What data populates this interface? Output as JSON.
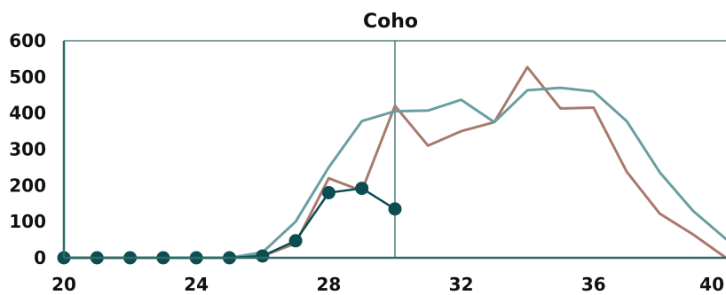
{
  "chart_data": {
    "type": "line",
    "title": "Coho",
    "xlabel": "",
    "ylabel": "",
    "xlim": [
      20,
      40
    ],
    "ylim": [
      0,
      600
    ],
    "x_ticks": [
      20,
      24,
      28,
      32,
      36,
      40
    ],
    "y_ticks": [
      0,
      100,
      200,
      300,
      400,
      500,
      600
    ],
    "vertical_reference_line": {
      "x": 30,
      "color": "#2e6b66"
    },
    "grid": false,
    "legend": "none",
    "series": [
      {
        "style": "line",
        "color": "#a97a6d",
        "points": [
          [
            20,
            0
          ],
          [
            21,
            0
          ],
          [
            22,
            0
          ],
          [
            23,
            0
          ],
          [
            24,
            0
          ],
          [
            25,
            0
          ],
          [
            26,
            5
          ],
          [
            27,
            40
          ],
          [
            28,
            220
          ],
          [
            29,
            185
          ],
          [
            30,
            420
          ],
          [
            31,
            310
          ],
          [
            32,
            350
          ],
          [
            33,
            375
          ],
          [
            34,
            527
          ],
          [
            35,
            413
          ],
          [
            36,
            415
          ],
          [
            37,
            238
          ],
          [
            38,
            122
          ],
          [
            39,
            65
          ],
          [
            40,
            0
          ]
        ]
      },
      {
        "style": "line",
        "color": "#6a9fa1",
        "points": [
          [
            20,
            0
          ],
          [
            21,
            0
          ],
          [
            22,
            0
          ],
          [
            23,
            0
          ],
          [
            24,
            0
          ],
          [
            25,
            0
          ],
          [
            26,
            15
          ],
          [
            27,
            100
          ],
          [
            28,
            250
          ],
          [
            29,
            378
          ],
          [
            30,
            405
          ],
          [
            31,
            407
          ],
          [
            32,
            437
          ],
          [
            33,
            375
          ],
          [
            34,
            463
          ],
          [
            35,
            470
          ],
          [
            36,
            460
          ],
          [
            37,
            378
          ],
          [
            38,
            236
          ],
          [
            39,
            130
          ],
          [
            40,
            52
          ]
        ]
      },
      {
        "style": "line-markers",
        "color": "#0d4d52",
        "points": [
          [
            20,
            0
          ],
          [
            21,
            0
          ],
          [
            22,
            0
          ],
          [
            23,
            0
          ],
          [
            24,
            0
          ],
          [
            25,
            0
          ],
          [
            26,
            5
          ],
          [
            27,
            47
          ],
          [
            28,
            180
          ],
          [
            29,
            192
          ],
          [
            30,
            135
          ]
        ]
      }
    ]
  }
}
